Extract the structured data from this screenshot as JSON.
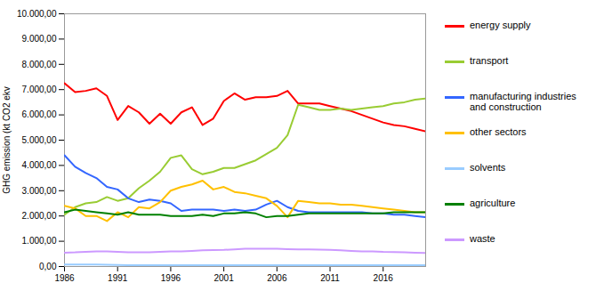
{
  "chart_data": {
    "type": "line",
    "y_label": "GHG emission (kt CO2 ekv",
    "x": [
      1986,
      1987,
      1988,
      1989,
      1990,
      1991,
      1992,
      1993,
      1994,
      1995,
      1996,
      1997,
      1998,
      1999,
      2000,
      2001,
      2002,
      2003,
      2004,
      2005,
      2006,
      2007,
      2008,
      2009,
      2010,
      2011,
      2012,
      2013,
      2014,
      2015,
      2016,
      2017,
      2018,
      2019,
      2020
    ],
    "xlim": [
      1986,
      2020
    ],
    "xticks": [
      1986,
      1991,
      1996,
      2001,
      2006,
      2011,
      2016
    ],
    "ylim": [
      0,
      10000
    ],
    "yticks": [
      {
        "value": 0,
        "label": "0,00"
      },
      {
        "value": 1000,
        "label": "1.000,00"
      },
      {
        "value": 2000,
        "label": "2.000,00"
      },
      {
        "value": 3000,
        "label": "3.000,00"
      },
      {
        "value": 4000,
        "label": "4.000,00"
      },
      {
        "value": 5000,
        "label": "5.000,00"
      },
      {
        "value": 6000,
        "label": "6.000,00"
      },
      {
        "value": 7000,
        "label": "7.000,00"
      },
      {
        "value": 8000,
        "label": "8.000,00"
      },
      {
        "value": 9000,
        "label": "9.000,00"
      },
      {
        "value": 10000,
        "label": "10.000,00"
      }
    ],
    "grid": false,
    "legend": "right",
    "series": [
      {
        "name": "energy supply",
        "color": "#ff0000",
        "values": [
          7250,
          6900,
          6950,
          7050,
          6750,
          5800,
          6350,
          6100,
          5650,
          6050,
          5650,
          6100,
          6300,
          5600,
          5850,
          6550,
          6850,
          6600,
          6700,
          6700,
          6750,
          6950,
          6450,
          6450,
          6450,
          6350,
          6250,
          6150,
          6000,
          5850,
          5700,
          5600,
          5550,
          5450,
          5350
        ]
      },
      {
        "name": "transport",
        "color": "#99cc33",
        "values": [
          2050,
          2350,
          2500,
          2550,
          2750,
          2600,
          2700,
          3100,
          3400,
          3750,
          4300,
          4400,
          3850,
          3650,
          3750,
          3900,
          3900,
          4050,
          4200,
          4450,
          4700,
          5200,
          6400,
          6300,
          6200,
          6200,
          6250,
          6200,
          6250,
          6300,
          6350,
          6450,
          6500,
          6600,
          6650
        ]
      },
      {
        "name": "manufacturing industries and construction",
        "color": "#3366ff",
        "values": [
          4400,
          3950,
          3700,
          3500,
          3150,
          3050,
          2700,
          2550,
          2650,
          2600,
          2500,
          2200,
          2250,
          2250,
          2250,
          2200,
          2250,
          2200,
          2250,
          2450,
          2600,
          2350,
          2200,
          2150,
          2150,
          2150,
          2150,
          2150,
          2150,
          2100,
          2100,
          2050,
          2050,
          2000,
          1950
        ]
      },
      {
        "name": "other sectors",
        "color": "#ffc000",
        "values": [
          2400,
          2300,
          2000,
          2000,
          1800,
          2150,
          1950,
          2350,
          2300,
          2550,
          3000,
          3150,
          3250,
          3400,
          3050,
          3150,
          2950,
          2900,
          2800,
          2700,
          2400,
          1950,
          2600,
          2550,
          2500,
          2500,
          2450,
          2450,
          2400,
          2350,
          2300,
          2250,
          2200,
          2150,
          2150
        ]
      },
      {
        "name": "solvents",
        "color": "#99ccff",
        "values": [
          80,
          80,
          80,
          75,
          70,
          60,
          55,
          55,
          55,
          55,
          55,
          55,
          55,
          55,
          55,
          55,
          55,
          55,
          55,
          55,
          55,
          55,
          50,
          50,
          50,
          50,
          50,
          50,
          50,
          50,
          50,
          50,
          50,
          50,
          50
        ]
      },
      {
        "name": "agriculture",
        "color": "#008000",
        "values": [
          2150,
          2250,
          2200,
          2150,
          2100,
          2050,
          2150,
          2050,
          2050,
          2050,
          2000,
          2000,
          2000,
          2050,
          2000,
          2100,
          2100,
          2150,
          2100,
          1950,
          2000,
          2000,
          2050,
          2100,
          2100,
          2100,
          2100,
          2100,
          2100,
          2100,
          2100,
          2150,
          2150,
          2150,
          2150
        ]
      },
      {
        "name": "waste",
        "color": "#cc99ff",
        "values": [
          550,
          560,
          580,
          600,
          600,
          580,
          560,
          560,
          560,
          580,
          600,
          600,
          620,
          640,
          650,
          660,
          680,
          700,
          700,
          700,
          700,
          690,
          680,
          680,
          670,
          660,
          640,
          620,
          600,
          600,
          580,
          570,
          560,
          550,
          540
        ]
      }
    ]
  }
}
